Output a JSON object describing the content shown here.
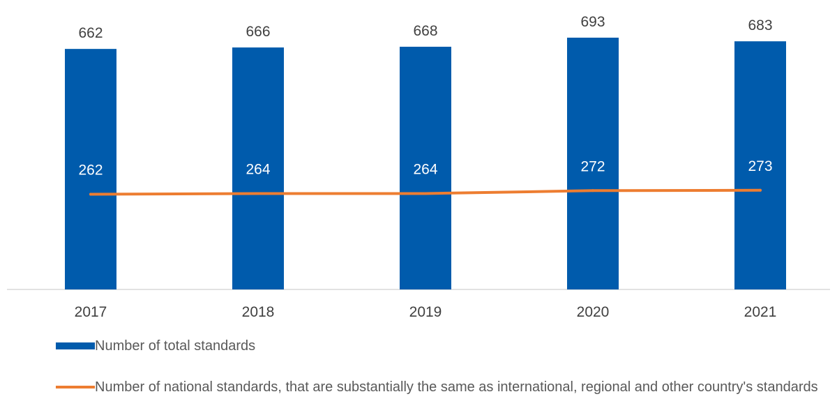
{
  "chart_data": {
    "type": "bar",
    "categories": [
      "2017",
      "2018",
      "2019",
      "2020",
      "2021"
    ],
    "series": [
      {
        "name": "Number of total standards",
        "kind": "bar",
        "values": [
          662,
          666,
          668,
          693,
          683
        ],
        "color": "#005BAC"
      },
      {
        "name": "Number of national standards, that are substantially the same as international, regional and other country's standards",
        "kind": "line",
        "values": [
          262,
          264,
          264,
          272,
          273
        ],
        "color": "#ED7D31"
      }
    ],
    "ylim": [
      0,
      700
    ],
    "grid": false,
    "legend": "bottom",
    "label_colors": {
      "bar_label": "#404040",
      "line_label": "#ffffff",
      "axis_text": "#404040"
    }
  },
  "legend": {
    "bar_label": "Number of total standards",
    "line_label": "Number of national standards, that are substantially the same as international, regional and other country's standards"
  }
}
